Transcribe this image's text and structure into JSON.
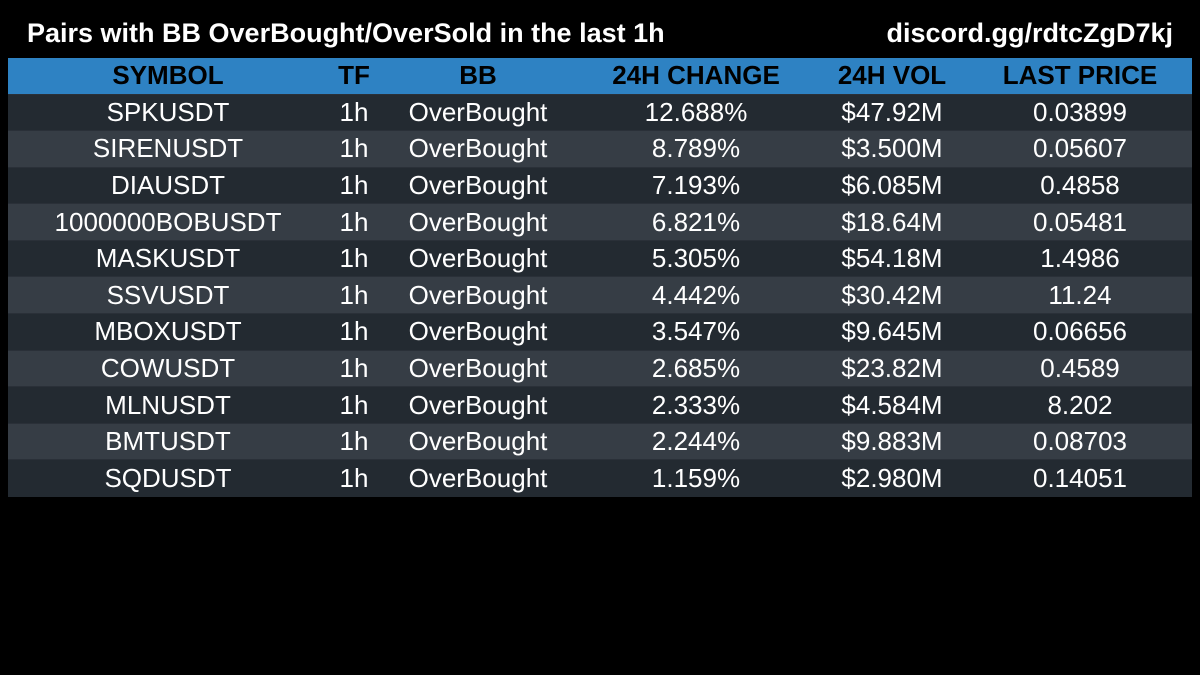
{
  "header": {
    "title": "Pairs with BB OverBought/OverSold in the last 1h",
    "link": "discord.gg/rdtcZgD7kj"
  },
  "colors": {
    "header_bg": "#2e82c3",
    "row_dark": "#232a31",
    "row_light": "#363d45",
    "page_bg": "#000000"
  },
  "table": {
    "columns": [
      "SYMBOL",
      "TF",
      "BB",
      "24H CHANGE",
      "24H VOL",
      "LAST PRICE"
    ],
    "rows": [
      [
        "SPKUSDT",
        "1h",
        "OverBought",
        "12.688%",
        "$47.92M",
        "0.03899"
      ],
      [
        "SIRENUSDT",
        "1h",
        "OverBought",
        "8.789%",
        "$3.500M",
        "0.05607"
      ],
      [
        "DIAUSDT",
        "1h",
        "OverBought",
        "7.193%",
        "$6.085M",
        "0.4858"
      ],
      [
        "1000000BOBUSDT",
        "1h",
        "OverBought",
        "6.821%",
        "$18.64M",
        "0.05481"
      ],
      [
        "MASKUSDT",
        "1h",
        "OverBought",
        "5.305%",
        "$54.18M",
        "1.4986"
      ],
      [
        "SSVUSDT",
        "1h",
        "OverBought",
        "4.442%",
        "$30.42M",
        "11.24"
      ],
      [
        "MBOXUSDT",
        "1h",
        "OverBought",
        "3.547%",
        "$9.645M",
        "0.06656"
      ],
      [
        "COWUSDT",
        "1h",
        "OverBought",
        "2.685%",
        "$23.82M",
        "0.4589"
      ],
      [
        "MLNUSDT",
        "1h",
        "OverBought",
        "2.333%",
        "$4.584M",
        "8.202"
      ],
      [
        "BMTUSDT",
        "1h",
        "OverBought",
        "2.244%",
        "$9.883M",
        "0.08703"
      ],
      [
        "SQDUSDT",
        "1h",
        "OverBought",
        "1.159%",
        "$2.980M",
        "0.14051"
      ]
    ]
  }
}
